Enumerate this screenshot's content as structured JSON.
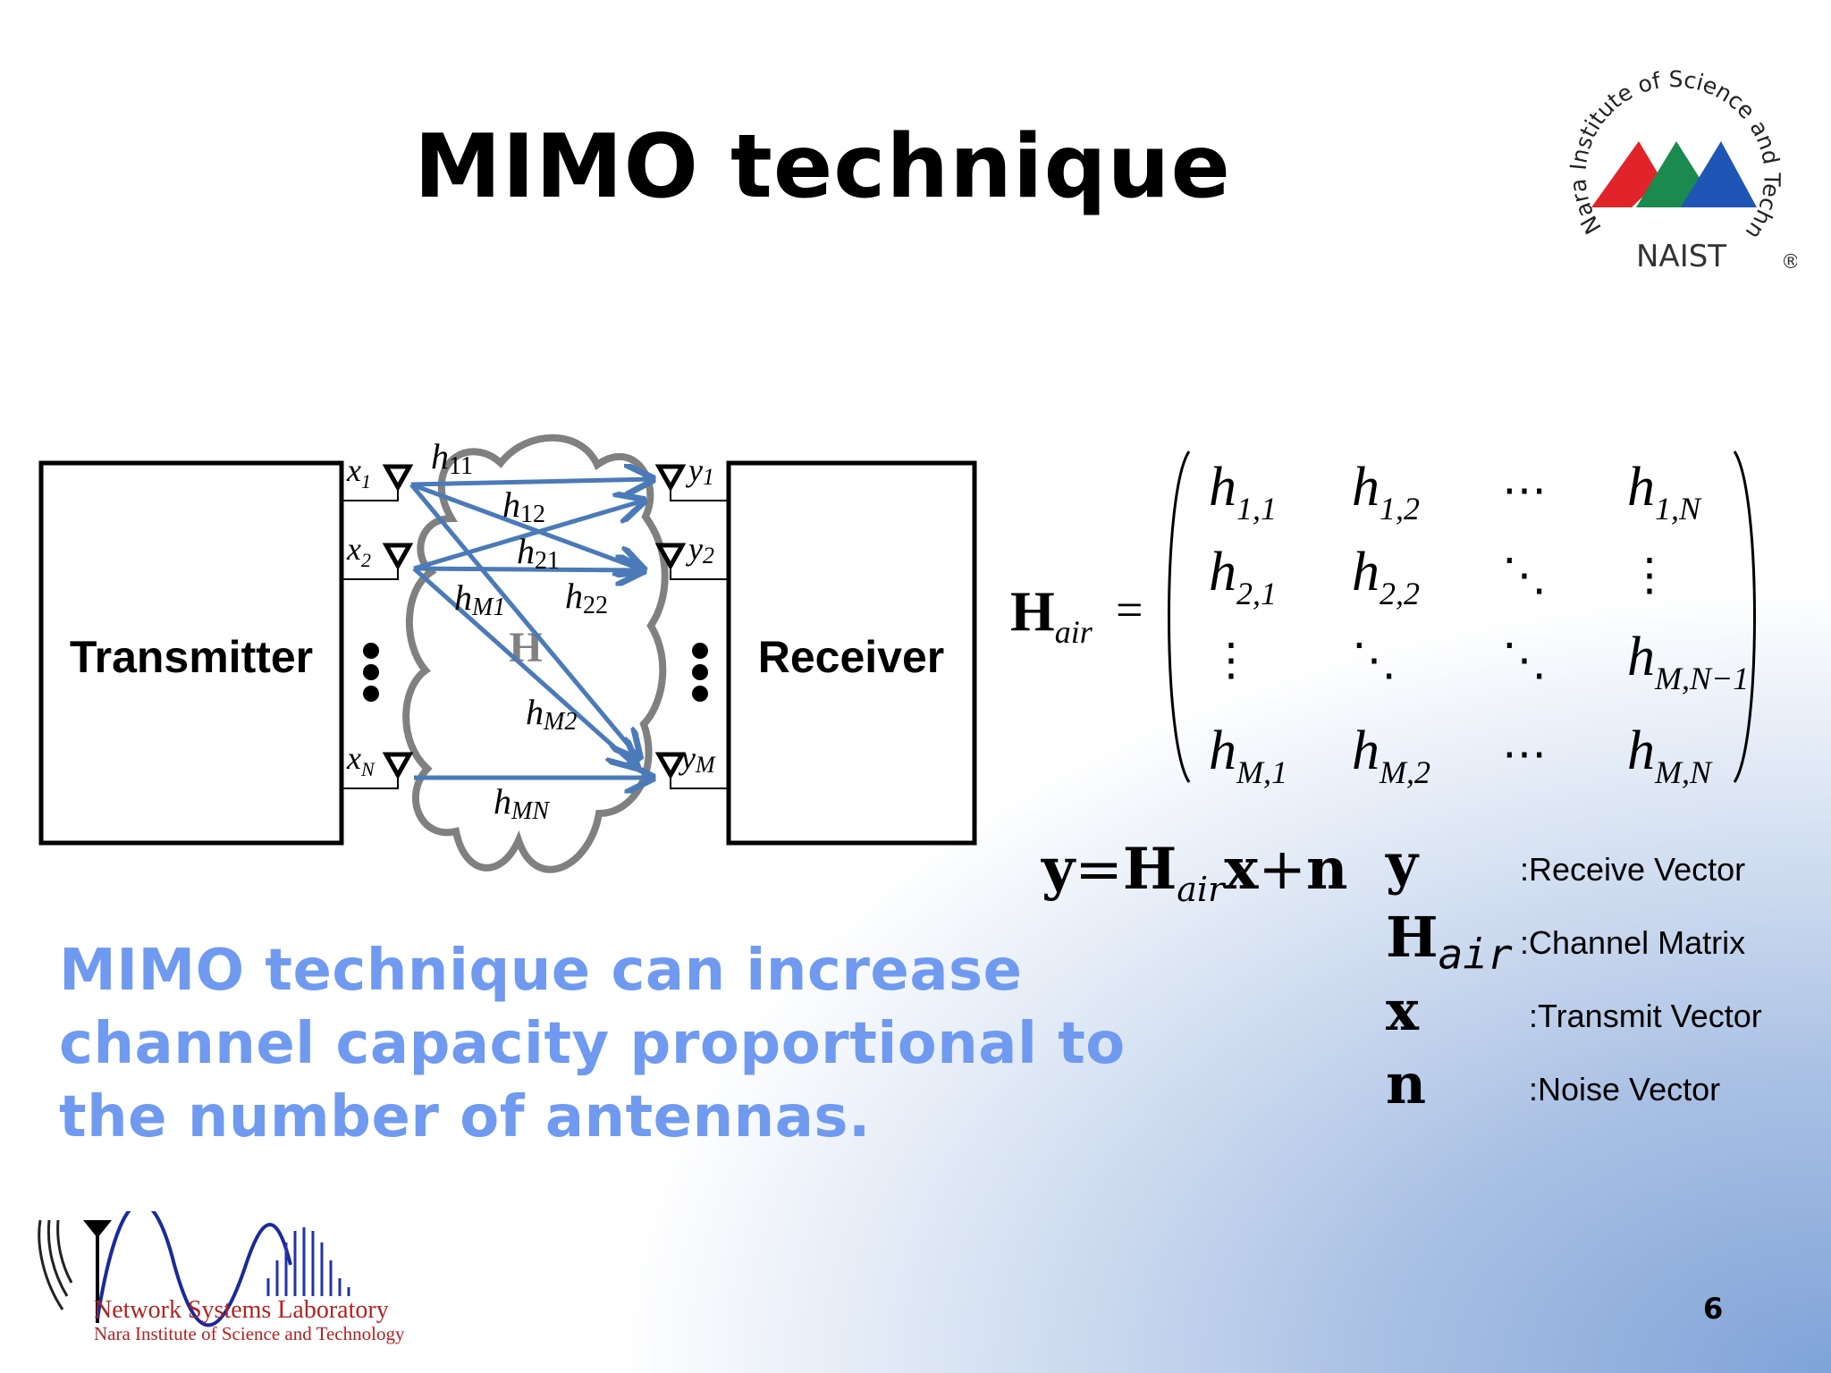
{
  "slide": {
    "title": "MIMO technique",
    "page_number": "6"
  },
  "naist_logo": {
    "ring_text": "Nara Institute of Science and Technology",
    "wordmark": "NAIST",
    "registered": "®",
    "colors": [
      "#e0242a",
      "#1a8a4e",
      "#1f55b5"
    ]
  },
  "diagram": {
    "transmitter_label": "Transmitter",
    "receiver_label": "Receiver",
    "channel_label": "H",
    "tx_antennas": [
      {
        "base": "x",
        "sub": "1"
      },
      {
        "base": "x",
        "sub": "2"
      },
      {
        "base": "x",
        "sub": "N"
      }
    ],
    "rx_antennas": [
      {
        "base": "y",
        "sub": "1"
      },
      {
        "base": "y",
        "sub": "2"
      },
      {
        "base": "y",
        "sub": "M"
      }
    ],
    "path_labels": [
      {
        "base": "h",
        "sub": "11"
      },
      {
        "base": "h",
        "sub": "12"
      },
      {
        "base": "h",
        "sub": "21"
      },
      {
        "base": "h",
        "sub": "M1"
      },
      {
        "base": "h",
        "sub": "22"
      },
      {
        "base": "h",
        "sub": "M2"
      },
      {
        "base": "h",
        "sub": "MN"
      }
    ],
    "arrow_color": "#4a7ab8",
    "cloud_color": "#808080"
  },
  "matrix": {
    "lhs_symbol": "H",
    "lhs_sub": "air",
    "equals": "=",
    "rows": [
      [
        {
          "base": "h",
          "sub": "1,1"
        },
        {
          "base": "h",
          "sub": "1,2"
        },
        {
          "base": "⋯",
          "sub": ""
        },
        {
          "base": "h",
          "sub": "1,N"
        }
      ],
      [
        {
          "base": "h",
          "sub": "2,1"
        },
        {
          "base": "h",
          "sub": "2,2"
        },
        {
          "base": "⋱",
          "sub": ""
        },
        {
          "base": "⋮",
          "sub": ""
        }
      ],
      [
        {
          "base": "⋮",
          "sub": ""
        },
        {
          "base": "⋱",
          "sub": ""
        },
        {
          "base": "⋱",
          "sub": ""
        },
        {
          "base": "h",
          "sub": "M,N−1"
        }
      ],
      [
        {
          "base": "h",
          "sub": "M,1"
        },
        {
          "base": "h",
          "sub": "M,2"
        },
        {
          "base": "⋯",
          "sub": ""
        },
        {
          "base": "h",
          "sub": "M,N"
        }
      ]
    ]
  },
  "equation": {
    "y": "y",
    "eq": "=",
    "H": "H",
    "H_sub": "air",
    "x": "x",
    "plus": "+",
    "n": "n"
  },
  "legend": [
    {
      "symbol": "y",
      "sub": "",
      "desc": ":Receive Vector"
    },
    {
      "symbol": "H",
      "sub": "air",
      "desc": ":Channel Matrix"
    },
    {
      "symbol": "x",
      "sub": "",
      "desc": ":Transmit Vector"
    },
    {
      "symbol": "n",
      "sub": "",
      "desc": ":Noise Vector"
    }
  ],
  "claim_lines": [
    "MIMO technique can increase",
    "channel capacity proportional to",
    "the number of antennas."
  ],
  "lab_logo": {
    "name": "Network Systems Laboratory",
    "institute": "Nara Institute of Science and Technology",
    "accent": "#2233aa"
  }
}
